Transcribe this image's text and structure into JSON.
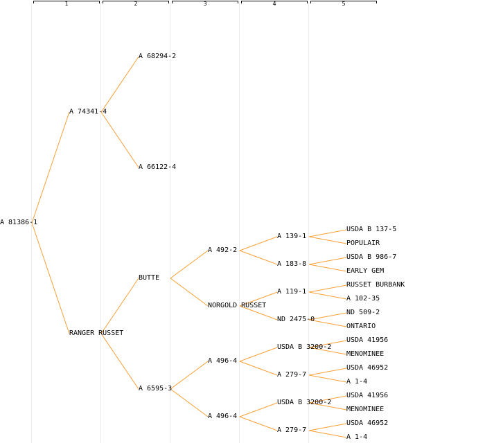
{
  "generation_labels": [
    "1",
    "2",
    "3",
    "4",
    "5"
  ],
  "colors": {
    "link": "#f7a035",
    "text": "#000000",
    "rule": "#ececec"
  },
  "tree": {
    "label": "A 81386-1",
    "children": [
      {
        "label": "A 74341-4",
        "children": [
          {
            "label": "A 68294-2"
          },
          {
            "label": "A 66122-4"
          }
        ]
      },
      {
        "label": "RANGER RUSSET",
        "children": [
          {
            "label": "BUTTE",
            "children": [
              {
                "label": "A 492-2",
                "children": [
                  {
                    "label": "A 139-1",
                    "children": [
                      {
                        "label": "USDA B 137-5"
                      },
                      {
                        "label": "POPULAIR"
                      }
                    ]
                  },
                  {
                    "label": "A 183-8",
                    "children": [
                      {
                        "label": "USDA B 986-7"
                      },
                      {
                        "label": "EARLY GEM"
                      }
                    ]
                  }
                ]
              },
              {
                "label": "NORGOLD RUSSET",
                "children": [
                  {
                    "label": "A 119-1",
                    "children": [
                      {
                        "label": "RUSSET BURBANK"
                      },
                      {
                        "label": "A 102-35"
                      }
                    ]
                  },
                  {
                    "label": "ND 2475-0",
                    "children": [
                      {
                        "label": "ND 509-2"
                      },
                      {
                        "label": "ONTARIO"
                      }
                    ]
                  }
                ]
              }
            ]
          },
          {
            "label": "A 6595-3",
            "children": [
              {
                "label": "A 496-4",
                "children": [
                  {
                    "label": "USDA B 3200-2",
                    "children": [
                      {
                        "label": "USDA 41956"
                      },
                      {
                        "label": "MENOMINEE"
                      }
                    ]
                  },
                  {
                    "label": "A 279-7",
                    "children": [
                      {
                        "label": "USDA 46952"
                      },
                      {
                        "label": "A 1-4"
                      }
                    ]
                  }
                ]
              },
              {
                "label": "A 496-4",
                "children": [
                  {
                    "label": "USDA B 3200-2",
                    "children": [
                      {
                        "label": "USDA 41956"
                      },
                      {
                        "label": "MENOMINEE"
                      }
                    ]
                  },
                  {
                    "label": "A 279-7",
                    "children": [
                      {
                        "label": "USDA 46952"
                      },
                      {
                        "label": "A 1-4"
                      }
                    ]
                  }
                ]
              }
            ]
          }
        ]
      }
    ]
  }
}
